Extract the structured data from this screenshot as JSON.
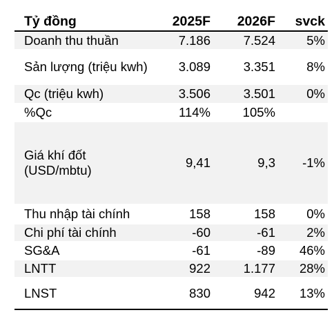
{
  "header": {
    "label": "Tỷ đồng",
    "col1": "2025F",
    "col2": "2026F",
    "col3": "svck"
  },
  "rows": [
    {
      "label": "Doanh thu thuần",
      "v1": "7.186",
      "v2": "7.524",
      "v3": "5%"
    },
    {
      "label": "Sản lượng (triệu kwh)",
      "v1": "3.089",
      "v2": "3.351",
      "v3": "8%"
    },
    {
      "label": "Qc (triệu kwh)",
      "v1": "3.506",
      "v2": "3.501",
      "v3": "0%"
    },
    {
      "label": "%Qc",
      "v1": "114%",
      "v2": "105%",
      "v3": ""
    },
    {
      "label": "Giá khí đốt (USD/mbtu)",
      "v1": "9,41",
      "v2": "9,3",
      "v3": "-1%"
    },
    {
      "label": "Thu nhập tài chính",
      "v1": "158",
      "v2": "158",
      "v3": "0%"
    },
    {
      "label": "Chi phí tài chính",
      "v1": "-60",
      "v2": "-61",
      "v3": "2%"
    },
    {
      "label": "SG&A",
      "v1": "-61",
      "v2": "-89",
      "v3": "46%"
    },
    {
      "label": "LNTT",
      "v1": "922",
      "v2": "1.177",
      "v3": "28%"
    },
    {
      "label": "LNST",
      "v1": "830",
      "v2": "942",
      "v3": "13%"
    }
  ]
}
